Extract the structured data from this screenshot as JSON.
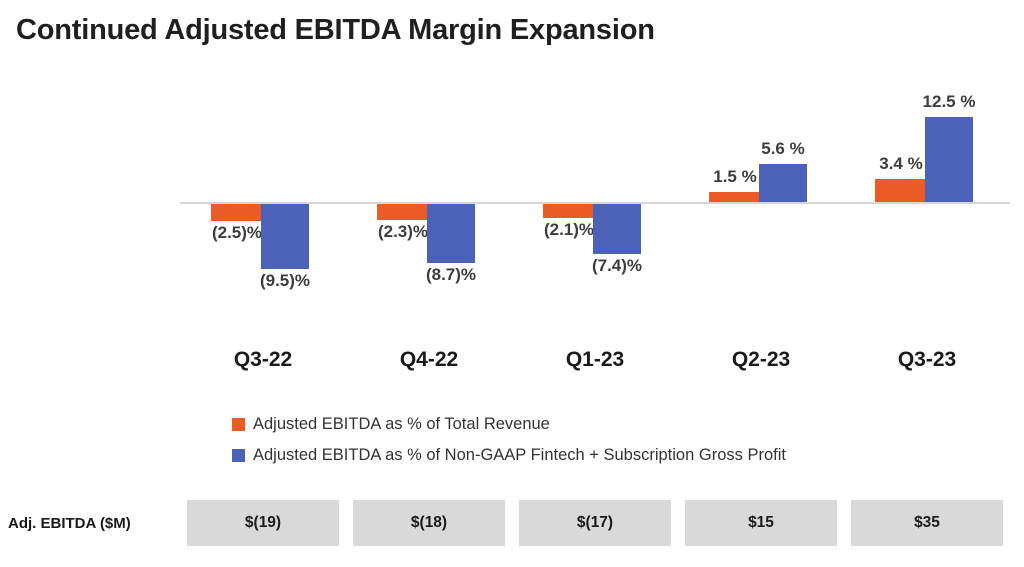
{
  "title": "Continued Adjusted EBITDA Margin Expansion",
  "chart_data": {
    "type": "bar",
    "title": "Continued Adjusted EBITDA Margin Expansion",
    "categories": [
      "Q3-22",
      "Q4-22",
      "Q1-23",
      "Q2-23",
      "Q3-23"
    ],
    "series": [
      {
        "name": "Adjusted EBITDA as % of Total Revenue",
        "color": "#ea5b25",
        "values": [
          -2.5,
          -2.3,
          -2.1,
          1.5,
          3.4
        ],
        "labels": [
          "(2.5)%",
          "(2.3)%",
          "(2.1)%",
          "1.5 %",
          "3.4 %"
        ]
      },
      {
        "name": "Adjusted EBITDA as % of Non-GAAP Fintech + Subscription Gross Profit",
        "color": "#4c61b8",
        "values": [
          -9.5,
          -8.7,
          -7.4,
          5.6,
          12.5
        ],
        "labels": [
          "(9.5)%",
          "(8.7)%",
          "(7.4)%",
          "5.6 %",
          "12.5 %"
        ]
      }
    ],
    "xlabel": "",
    "ylabel": "",
    "ylim": [
      -12,
      14
    ],
    "grid": false,
    "legend_position": "bottom-left",
    "data_labels": true
  },
  "table": {
    "row_label": "Adj. EBITDA ($M)",
    "values": [
      "$(19)",
      "$(18)",
      "$(17)",
      "$15",
      "$35"
    ]
  }
}
